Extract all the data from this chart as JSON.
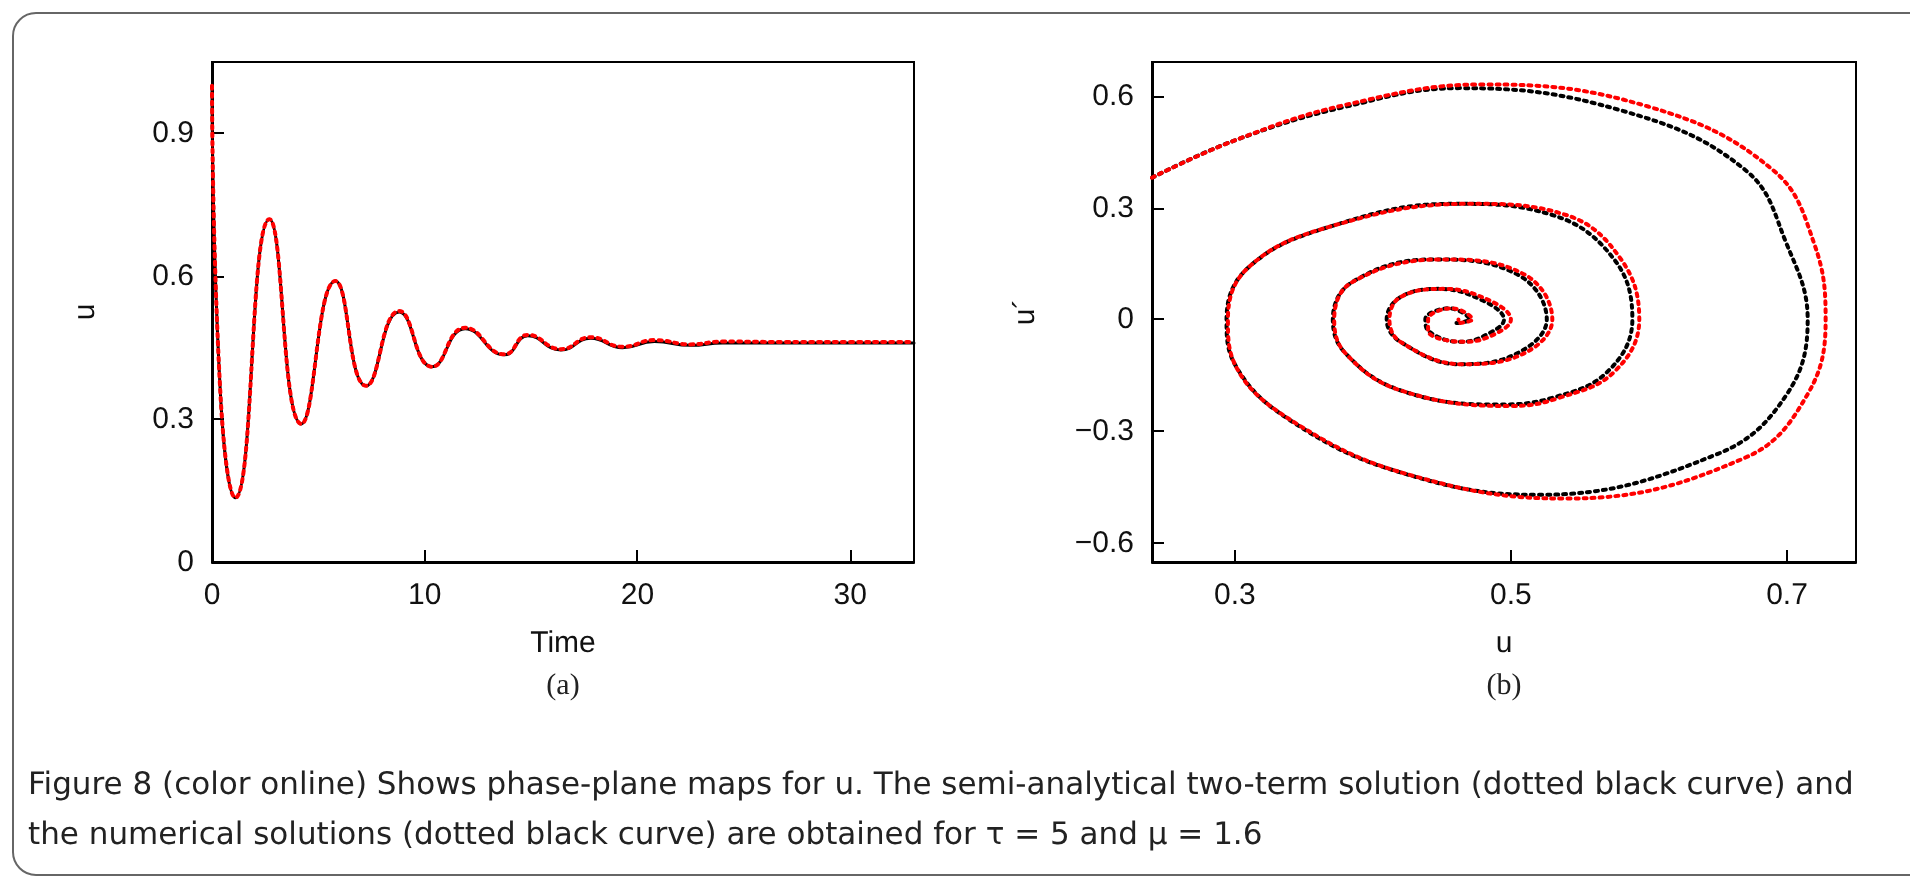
{
  "chart_data": [
    {
      "type": "line",
      "xlabel": "Time",
      "ylabel": "u",
      "xlim": [
        0,
        33
      ],
      "xticks": [
        0,
        10,
        20,
        30
      ],
      "ylim": [
        0,
        1.05
      ],
      "yticks": [
        0,
        0.3,
        0.6,
        0.9
      ],
      "marker": "none",
      "annotations": [
        "(a)"
      ],
      "x": [
        0,
        0.4,
        1.1,
        2.7,
        4.2,
        5.8,
        7.25,
        8.8,
        10.35,
        11.9,
        13.75,
        14.85,
        16.4,
        17.8,
        19.3,
        20.8,
        22.5,
        24,
        27,
        30,
        33
      ],
      "series": [
        {
          "color": "#000000",
          "line_style": "solid",
          "values": [
            1.0,
            0.35,
            0.135,
            0.72,
            0.29,
            0.59,
            0.37,
            0.525,
            0.41,
            0.49,
            0.435,
            0.475,
            0.445,
            0.47,
            0.45,
            0.463,
            0.455,
            0.46,
            0.46,
            0.46,
            0.46
          ]
        },
        {
          "color": "#ff0000",
          "line_style": "dotted",
          "values": [
            1.0,
            0.35,
            0.135,
            0.72,
            0.29,
            0.59,
            0.37,
            0.527,
            0.41,
            0.492,
            0.436,
            0.477,
            0.447,
            0.472,
            0.452,
            0.466,
            0.457,
            0.463,
            0.462,
            0.462,
            0.462
          ]
        }
      ]
    },
    {
      "type": "line",
      "xlabel": "u",
      "ylabel": "u´",
      "xlim": [
        0.24,
        0.75
      ],
      "xticks": [
        0.3,
        0.5,
        0.7
      ],
      "ylim": [
        -0.65,
        0.69
      ],
      "yticks": [
        -0.6,
        -0.3,
        0,
        0.3,
        0.6
      ],
      "marker": "none",
      "annotations": [
        "(b)",
        "Figure 8  (color online) Shows phase-plane maps for u. The semi-analytical two-term solution (dotted black curve) and the numerical solutions (dotted black curve) are obtained for τ = 5 and μ = 1.6"
      ],
      "series": [
        {
          "color": "#000000",
          "line_style": "dotted",
          "x": [
            0.24,
            0.3,
            0.38,
            0.463,
            0.58,
            0.67,
            0.7,
            0.715,
            0.7,
            0.65,
            0.52,
            0.42,
            0.34,
            0.3,
            0.294,
            0.31,
            0.37,
            0.458,
            0.53,
            0.575,
            0.588,
            0.57,
            0.53,
            0.49,
            0.42,
            0.38,
            0.371,
            0.385,
            0.443,
            0.505,
            0.526,
            0.505,
            0.463,
            0.42,
            0.41,
            0.42,
            0.448,
            0.48,
            0.495,
            0.48,
            0.463,
            0.44,
            0.438,
            0.455,
            0.47,
            0.46,
            0.46
          ],
          "values": [
            0.38,
            0.48,
            0.57,
            0.62,
            0.56,
            0.4,
            0.2,
            0,
            -0.2,
            -0.36,
            -0.47,
            -0.41,
            -0.27,
            -0.12,
            0,
            0.14,
            0.25,
            0.31,
            0.28,
            0.16,
            0,
            -0.14,
            -0.21,
            -0.228,
            -0.19,
            -0.09,
            0,
            0.1,
            0.161,
            0.12,
            0,
            -0.09,
            -0.12,
            -0.06,
            0,
            0.06,
            0.082,
            0.05,
            0,
            -0.045,
            -0.06,
            -0.03,
            0,
            0.03,
            0,
            -0.01,
            0
          ]
        },
        {
          "color": "#ff0000",
          "line_style": "dotted",
          "x": [
            0.24,
            0.3,
            0.38,
            0.48,
            0.6,
            0.69,
            0.72,
            0.728,
            0.715,
            0.67,
            0.54,
            0.43,
            0.345,
            0.3,
            0.295,
            0.31,
            0.37,
            0.47,
            0.54,
            0.58,
            0.593,
            0.575,
            0.535,
            0.5,
            0.42,
            0.38,
            0.372,
            0.385,
            0.45,
            0.51,
            0.53,
            0.51,
            0.465,
            0.42,
            0.412,
            0.42,
            0.452,
            0.485,
            0.5,
            0.485,
            0.465,
            0.44,
            0.44,
            0.457,
            0.472,
            0.462,
            0.462
          ],
          "values": [
            0.38,
            0.48,
            0.575,
            0.63,
            0.57,
            0.4,
            0.2,
            0,
            -0.2,
            -0.37,
            -0.48,
            -0.42,
            -0.28,
            -0.12,
            0,
            0.14,
            0.25,
            0.31,
            0.28,
            0.16,
            0,
            -0.14,
            -0.21,
            -0.232,
            -0.19,
            -0.09,
            0,
            0.1,
            0.161,
            0.12,
            0,
            -0.09,
            -0.12,
            -0.06,
            0,
            0.06,
            0.082,
            0.05,
            0,
            -0.045,
            -0.06,
            -0.03,
            0,
            0.03,
            0,
            -0.01,
            0
          ]
        }
      ]
    }
  ]
}
